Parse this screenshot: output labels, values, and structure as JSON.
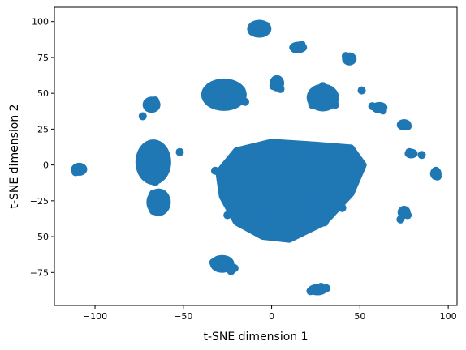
{
  "chart_data": {
    "type": "scatter",
    "title": "",
    "xlabel": "t-SNE dimension 1",
    "ylabel": "t-SNE dimension 2",
    "xlim": [
      -123,
      105
    ],
    "ylim": [
      -98,
      110
    ],
    "xticks": [
      -100,
      -50,
      0,
      50,
      100
    ],
    "yticks": [
      -75,
      -50,
      -25,
      0,
      25,
      50,
      75,
      100
    ],
    "grid": false,
    "legend": "none",
    "series": [
      {
        "color": "#1f77b4",
        "points": [
          [
            -110,
            -2
          ],
          [
            -108,
            -3
          ],
          [
            -111,
            -5
          ],
          [
            -68,
            42
          ],
          [
            -66,
            45
          ],
          [
            -70,
            40
          ],
          [
            -73,
            34
          ],
          [
            -67,
            5
          ],
          [
            -64,
            0
          ],
          [
            -70,
            -5
          ],
          [
            -66,
            -12
          ],
          [
            -63,
            -8
          ],
          [
            -60,
            2
          ],
          [
            -72,
            0
          ],
          [
            -67,
            -20
          ],
          [
            -64,
            -28
          ],
          [
            -67,
            -32
          ],
          [
            -62,
            -25
          ],
          [
            -66,
            -24
          ],
          [
            -52,
            9
          ],
          [
            -30,
            52
          ],
          [
            -24,
            50
          ],
          [
            -33,
            46
          ],
          [
            -20,
            48
          ],
          [
            -27,
            44
          ],
          [
            -17,
            52
          ],
          [
            -35,
            50
          ],
          [
            -15,
            44
          ],
          [
            -9,
            95
          ],
          [
            -5,
            92
          ],
          [
            -3,
            97
          ],
          [
            -11,
            93
          ],
          [
            3,
            58
          ],
          [
            1,
            55
          ],
          [
            5,
            53
          ],
          [
            -33,
            -68
          ],
          [
            -30,
            -66
          ],
          [
            -26,
            -71
          ],
          [
            -23,
            -74
          ],
          [
            -21,
            -72
          ],
          [
            15,
            82
          ],
          [
            17,
            84
          ],
          [
            13,
            81
          ],
          [
            27,
            50
          ],
          [
            25,
            44
          ],
          [
            30,
            48
          ],
          [
            23,
            42
          ],
          [
            35,
            46
          ],
          [
            36,
            42
          ],
          [
            29,
            55
          ],
          [
            44,
            75
          ],
          [
            45,
            73
          ],
          [
            42,
            76
          ],
          [
            51,
            52
          ],
          [
            60,
            40
          ],
          [
            63,
            38
          ],
          [
            57,
            41
          ],
          [
            74,
            28
          ],
          [
            77,
            27
          ],
          [
            75,
            29
          ],
          [
            78,
            9
          ],
          [
            80,
            8
          ],
          [
            85,
            7
          ],
          [
            75,
            -33
          ],
          [
            77,
            -35
          ],
          [
            73,
            -38
          ],
          [
            92,
            -6
          ],
          [
            94,
            -8
          ],
          [
            93,
            -4
          ],
          [
            -32,
            -4
          ],
          [
            -25,
            -3
          ],
          [
            0,
            -5
          ],
          [
            5,
            -15
          ],
          [
            -10,
            -20
          ],
          [
            10,
            -30
          ],
          [
            20,
            -10
          ],
          [
            25,
            -25
          ],
          [
            35,
            -5
          ],
          [
            -20,
            -25
          ],
          [
            -5,
            -40
          ],
          [
            15,
            -45
          ],
          [
            30,
            -40
          ],
          [
            40,
            -15
          ],
          [
            45,
            5
          ],
          [
            -18,
            -10
          ],
          [
            0,
            10
          ],
          [
            12,
            -5
          ],
          [
            -8,
            -5
          ],
          [
            20,
            5
          ],
          [
            30,
            10
          ],
          [
            -25,
            -35
          ],
          [
            8,
            -50
          ],
          [
            22,
            -35
          ],
          [
            40,
            -30
          ],
          [
            -12,
            5
          ],
          [
            5,
            15
          ],
          [
            35,
            -20
          ],
          [
            15,
            -20
          ],
          [
            -2,
            -28
          ],
          [
            25,
            -87
          ],
          [
            28,
            -85
          ],
          [
            22,
            -88
          ],
          [
            31,
            -86
          ]
        ]
      }
    ]
  }
}
